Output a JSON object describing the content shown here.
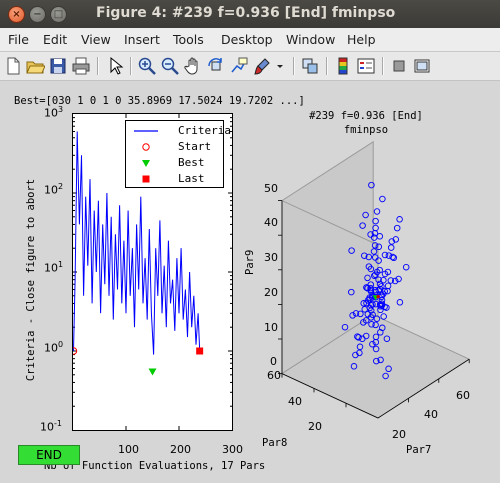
{
  "window": {
    "title": "Figure 4: #239 f=0.936 [End] fminpso",
    "close": "×",
    "minimize": "−",
    "maximize": "□"
  },
  "menu": [
    "File",
    "Edit",
    "View",
    "Insert",
    "Tools",
    "Desktop",
    "Window",
    "Help"
  ],
  "toolbar": [
    "new-figure-icon",
    "open-file-icon",
    "save-icon",
    "print-icon",
    "pointer-icon",
    "zoom-in-icon",
    "zoom-out-icon",
    "pan-icon",
    "rotate-icon",
    "data-cursor-icon",
    "brush-icon",
    "brush-dropdown-icon",
    "link-icon",
    "colorbar-icon",
    "legend-icon",
    "hide-tools-icon",
    "show-tools-icon"
  ],
  "best_text": "Best=[030 1 0 1 0 35.8969 17.5024 19.7202 ...]",
  "left_plot": {
    "ylabel": "Criteria - Close figure to abort",
    "xlabel": "Nb of Function Evaluations, 17 Pars",
    "xticks": [
      "100",
      "200",
      "300"
    ],
    "yticks": [
      {
        "base": "10",
        "exp": "3"
      },
      {
        "base": "10",
        "exp": "2"
      },
      {
        "base": "10",
        "exp": "1"
      },
      {
        "base": "10",
        "exp": "0"
      },
      {
        "base": "10",
        "exp": "-1"
      }
    ],
    "legend": [
      {
        "label": "Criteria",
        "color": "#0000ff"
      },
      {
        "label": "Start",
        "color": "#ff0000"
      },
      {
        "label": "Best",
        "color": "#00cc00"
      },
      {
        "label": "Last",
        "color": "#ff0000"
      }
    ]
  },
  "end_button": "END",
  "right_plot": {
    "title_line1": "#239 f=0.936 [End]",
    "title_line2": "fminpso",
    "z_label": "Par9",
    "x_label": "Par7",
    "y_label": "Par8",
    "z_ticks": [
      "0",
      "10",
      "20",
      "30",
      "40",
      "50"
    ],
    "x_ticks": [
      "20",
      "40",
      "60"
    ],
    "y_ticks": [
      "20",
      "40",
      "60"
    ]
  },
  "chart_data": [
    {
      "type": "line",
      "x_range": [
        0,
        300
      ],
      "y_scale": "log",
      "y_range": [
        0.1,
        1000
      ],
      "series": [
        {
          "name": "Criteria",
          "color": "#0000ff",
          "points": [
            [
              1,
              1.0
            ],
            [
              4,
              8
            ],
            [
              8,
              600
            ],
            [
              12,
              40
            ],
            [
              16,
              300
            ],
            [
              20,
              5
            ],
            [
              24,
              90
            ],
            [
              28,
              12
            ],
            [
              32,
              150
            ],
            [
              36,
              4
            ],
            [
              40,
              60
            ],
            [
              44,
              10
            ],
            [
              48,
              80
            ],
            [
              52,
              3
            ],
            [
              56,
              40
            ],
            [
              60,
              7
            ],
            [
              64,
              100
            ],
            [
              68,
              5
            ],
            [
              72,
              50
            ],
            [
              76,
              2.5
            ],
            [
              80,
              30
            ],
            [
              84,
              6
            ],
            [
              88,
              70
            ],
            [
              92,
              4
            ],
            [
              96,
              25
            ],
            [
              100,
              3
            ],
            [
              104,
              60
            ],
            [
              108,
              5
            ],
            [
              112,
              20
            ],
            [
              116,
              2
            ],
            [
              120,
              40
            ],
            [
              124,
              6
            ],
            [
              128,
              90
            ],
            [
              132,
              4
            ],
            [
              136,
              15
            ],
            [
              140,
              2.5
            ],
            [
              144,
              35
            ],
            [
              148,
              3
            ],
            [
              152,
              0.9
            ],
            [
              156,
              20
            ],
            [
              160,
              5
            ],
            [
              164,
              45
            ],
            [
              168,
              3
            ],
            [
              172,
              12
            ],
            [
              176,
              2
            ],
            [
              180,
              25
            ],
            [
              184,
              4
            ],
            [
              188,
              8
            ],
            [
              192,
              1.8
            ],
            [
              196,
              15
            ],
            [
              200,
              3
            ],
            [
              204,
              20
            ],
            [
              208,
              2.5
            ],
            [
              212,
              6
            ],
            [
              216,
              1.5
            ],
            [
              220,
              10
            ],
            [
              224,
              2
            ],
            [
              228,
              5
            ],
            [
              232,
              1.2
            ],
            [
              236,
              3
            ],
            [
              239,
              1.0
            ]
          ]
        }
      ],
      "markers": [
        {
          "name": "Start",
          "x": 1,
          "y": 1.0
        },
        {
          "name": "Best",
          "x": 150,
          "y": 0.55
        },
        {
          "name": "Last",
          "x": 239,
          "y": 1.0
        }
      ]
    },
    {
      "type": "scatter",
      "axes": {
        "x": "Par7",
        "y": "Par8",
        "z": "Par9"
      },
      "x_range": [
        0,
        60
      ],
      "y_range": [
        0,
        60
      ],
      "z_range": [
        0,
        50
      ],
      "point_color": "#0000ff",
      "points": [
        [
          30,
          30,
          20
        ],
        [
          32,
          28,
          18
        ],
        [
          28,
          31,
          22
        ],
        [
          31,
          33,
          19
        ],
        [
          29,
          29,
          21
        ],
        [
          33,
          30,
          17
        ],
        [
          27,
          27,
          23
        ],
        [
          30,
          32,
          20
        ],
        [
          34,
          31,
          21
        ],
        [
          26,
          29,
          19
        ],
        [
          31,
          27,
          18
        ],
        [
          29,
          34,
          22
        ],
        [
          35,
          28,
          16
        ],
        [
          25,
          31,
          24
        ],
        [
          30,
          26,
          20
        ],
        [
          32,
          35,
          21
        ],
        [
          28,
          25,
          19
        ],
        [
          36,
          32,
          18
        ],
        [
          24,
          28,
          22
        ],
        [
          31,
          30,
          27
        ],
        [
          30,
          30,
          12
        ],
        [
          33,
          33,
          25
        ],
        [
          27,
          30,
          15
        ],
        [
          29,
          32,
          28
        ],
        [
          31,
          28,
          10
        ],
        [
          34,
          26,
          23
        ],
        [
          26,
          33,
          17
        ],
        [
          32,
          30,
          30
        ],
        [
          28,
          28,
          8
        ],
        [
          30,
          31,
          33
        ],
        [
          38,
          34,
          20
        ],
        [
          22,
          26,
          20
        ],
        [
          36,
          28,
          26
        ],
        [
          24,
          32,
          14
        ],
        [
          35,
          35,
          29
        ],
        [
          25,
          25,
          11
        ],
        [
          33,
          27,
          32
        ],
        [
          27,
          33,
          9
        ],
        [
          40,
          30,
          22
        ],
        [
          20,
          30,
          18
        ],
        [
          37,
          31,
          15
        ],
        [
          23,
          29,
          25
        ],
        [
          31,
          36,
          24
        ],
        [
          29,
          24,
          16
        ],
        [
          34,
          33,
          12
        ],
        [
          26,
          27,
          28
        ],
        [
          30,
          28,
          35
        ],
        [
          30,
          32,
          6
        ],
        [
          32,
          26,
          27
        ],
        [
          28,
          34,
          13
        ],
        [
          39,
          36,
          24
        ],
        [
          21,
          24,
          16
        ],
        [
          38,
          27,
          30
        ],
        [
          22,
          33,
          10
        ],
        [
          35,
          25,
          34
        ],
        [
          25,
          35,
          6
        ],
        [
          41,
          33,
          18
        ],
        [
          19,
          27,
          22
        ],
        [
          33,
          36,
          36
        ],
        [
          27,
          24,
          4
        ],
        [
          42,
          30,
          28
        ],
        [
          18,
          30,
          12
        ],
        [
          36,
          36,
          32
        ],
        [
          24,
          24,
          8
        ],
        [
          31,
          38,
          30
        ],
        [
          29,
          22,
          10
        ],
        [
          43,
          28,
          22
        ],
        [
          17,
          32,
          18
        ],
        [
          34,
          38,
          26
        ],
        [
          26,
          22,
          14
        ],
        [
          44,
          35,
          27
        ],
        [
          16,
          25,
          13
        ],
        [
          37,
          24,
          36
        ],
        [
          23,
          36,
          4
        ],
        [
          45,
          32,
          20
        ],
        [
          15,
          28,
          20
        ],
        [
          39,
          39,
          34
        ],
        [
          21,
          21,
          6
        ],
        [
          32,
          40,
          38
        ],
        [
          28,
          20,
          2
        ],
        [
          46,
          30,
          14
        ],
        [
          14,
          30,
          26
        ],
        [
          40,
          26,
          38
        ],
        [
          20,
          34,
          2
        ],
        [
          47,
          36,
          30
        ],
        [
          13,
          24,
          10
        ],
        [
          35,
          41,
          40
        ],
        [
          25,
          19,
          1
        ],
        [
          48,
          28,
          24
        ],
        [
          12,
          32,
          16
        ],
        [
          30,
          30,
          42
        ],
        [
          30,
          30,
          40
        ],
        [
          32,
          31,
          44
        ],
        [
          28,
          29,
          38
        ],
        [
          45,
          40,
          42
        ],
        [
          15,
          20,
          38
        ],
        [
          50,
          34,
          36
        ],
        [
          10,
          26,
          40
        ],
        [
          42,
          44,
          46
        ],
        [
          18,
          16,
          44
        ],
        [
          33,
          29,
          20
        ],
        [
          27,
          31,
          20
        ],
        [
          31,
          29,
          22
        ],
        [
          29,
          31,
          18
        ],
        [
          32,
          32,
          21
        ],
        [
          28,
          28,
          19
        ],
        [
          30,
          33,
          23
        ],
        [
          30,
          27,
          17
        ],
        [
          33,
          31,
          24
        ],
        [
          27,
          29,
          16
        ],
        [
          34,
          29,
          20
        ],
        [
          26,
          31,
          20
        ],
        [
          31,
          34,
          21
        ],
        [
          29,
          26,
          19
        ],
        [
          35,
          32,
          22
        ],
        [
          25,
          28,
          18
        ],
        [
          32,
          27,
          25
        ],
        [
          28,
          33,
          15
        ],
        [
          36,
          30,
          20
        ],
        [
          24,
          30,
          20
        ]
      ],
      "best": [
        30,
        30,
        20
      ]
    }
  ]
}
